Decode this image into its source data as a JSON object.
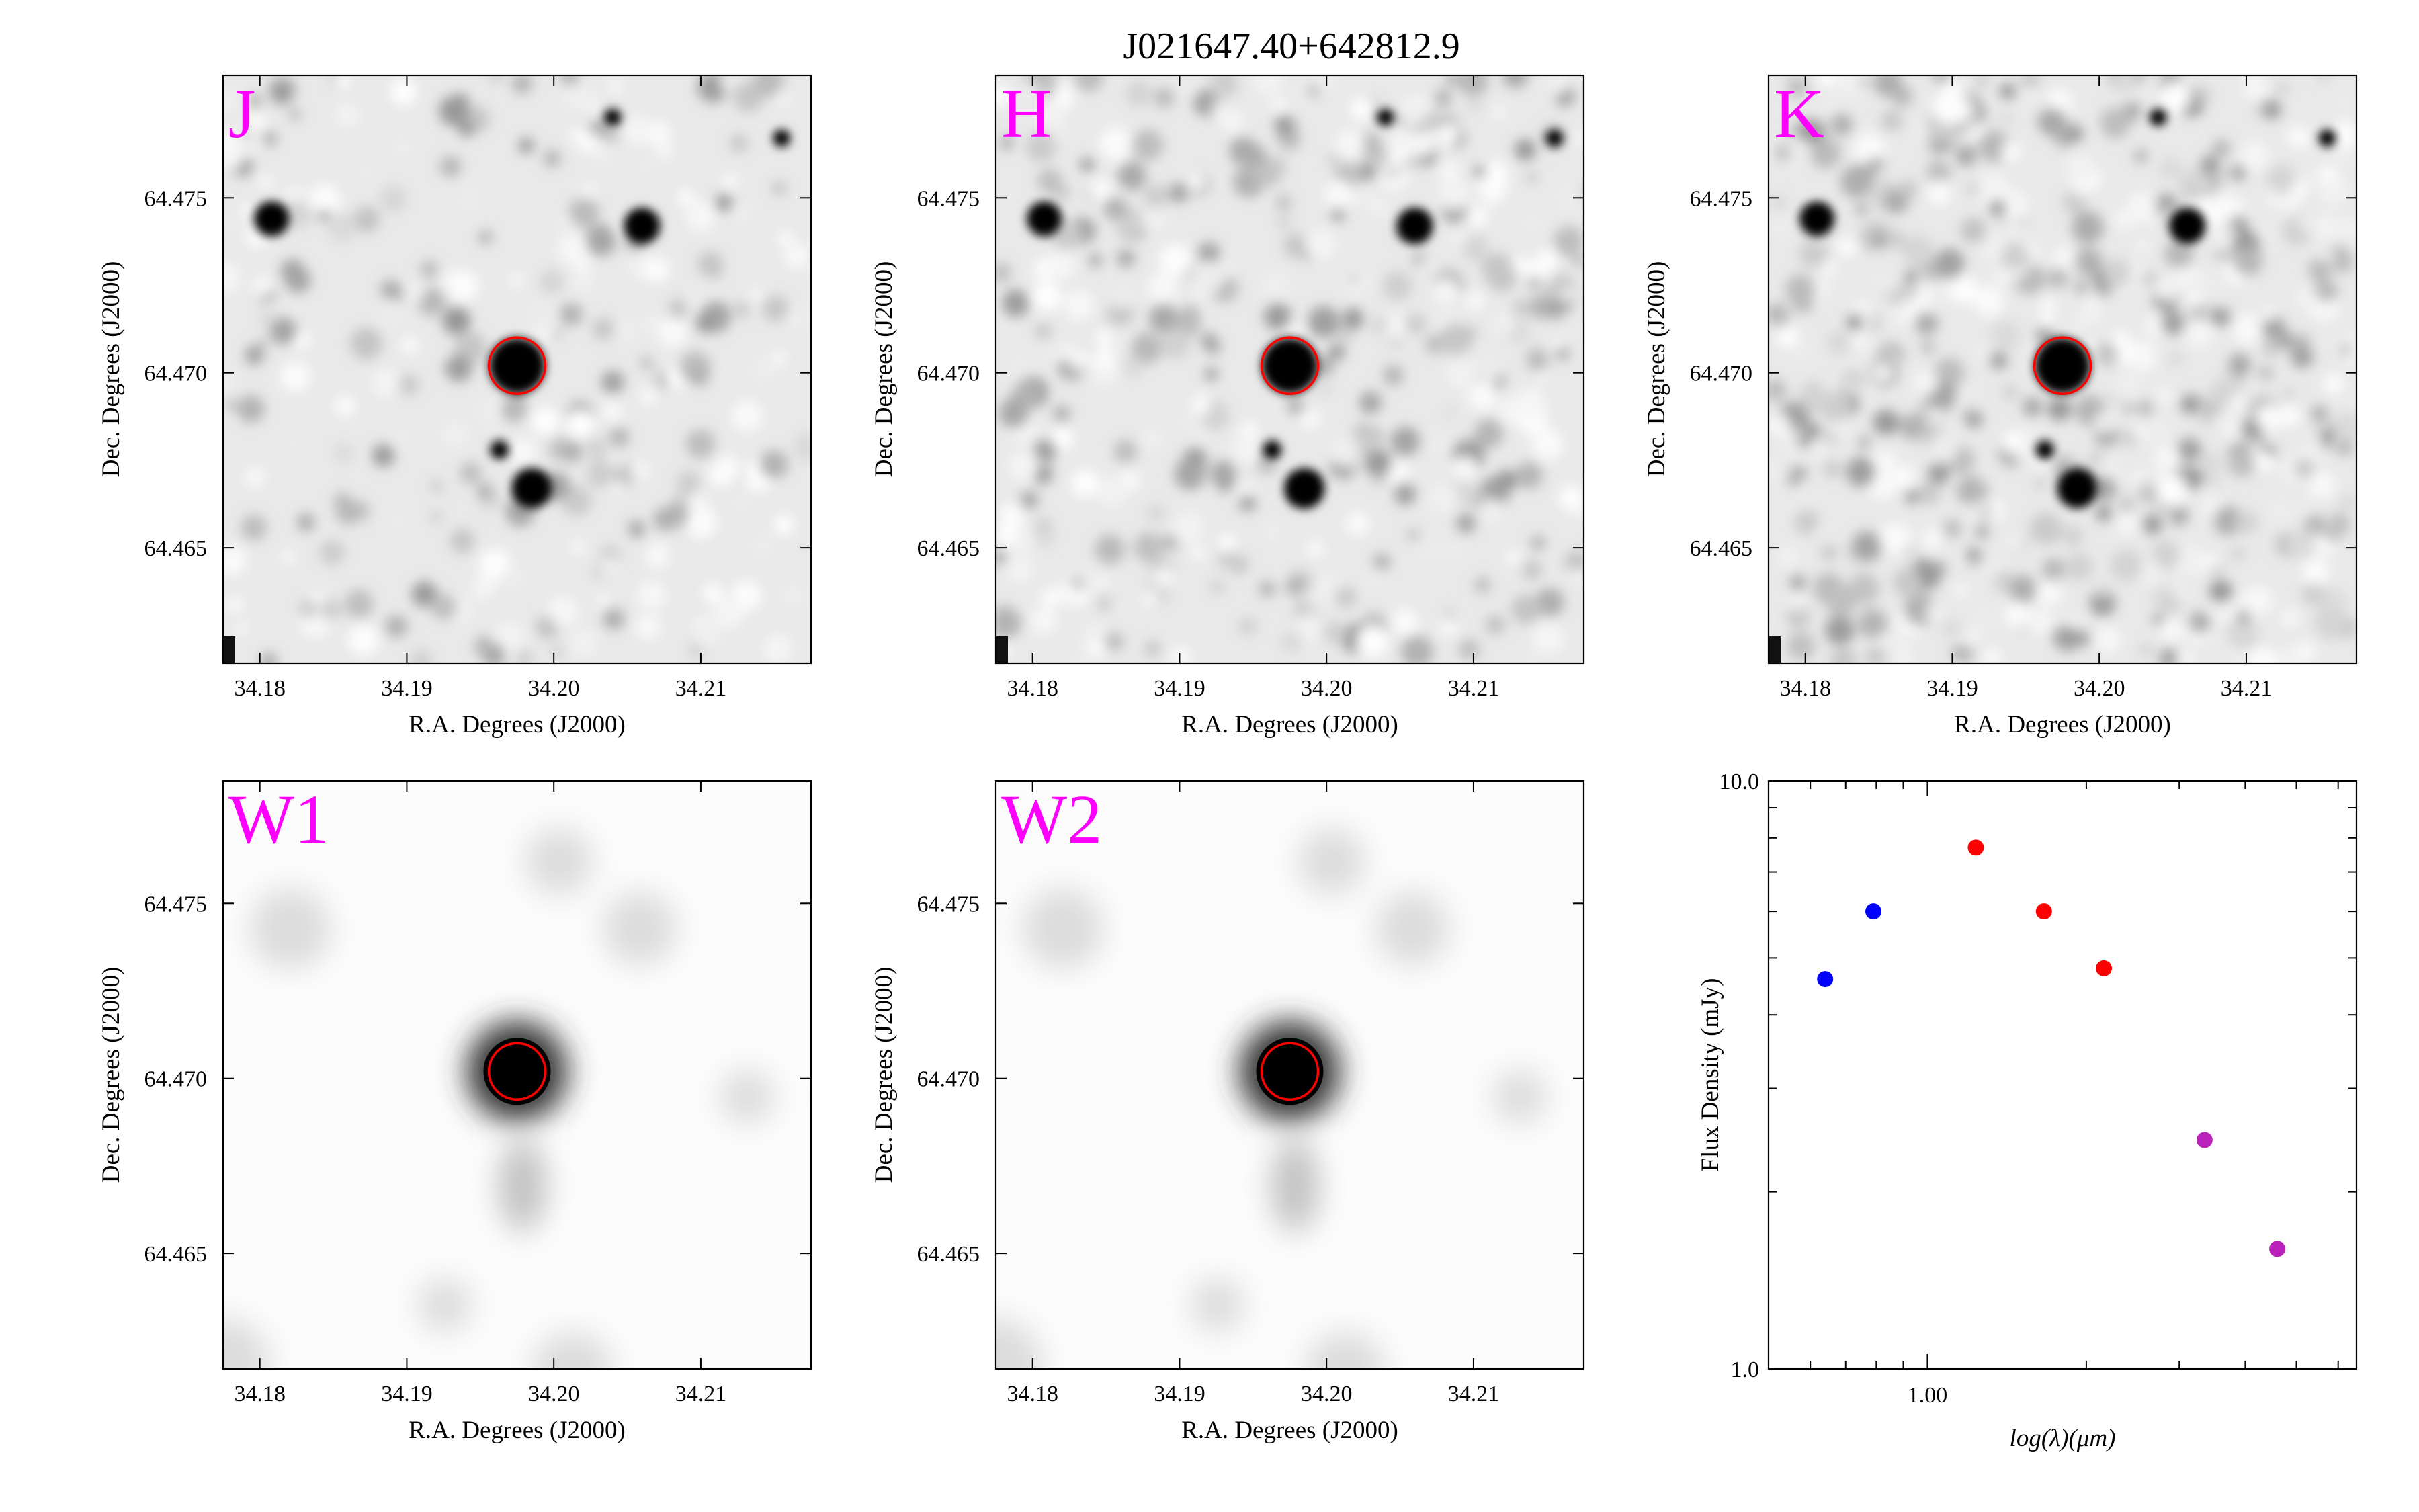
{
  "figure": {
    "title": "J021647.40+642812.9"
  },
  "image_panels": [
    {
      "band": "J",
      "xlabel": "R.A. Degrees (J2000)",
      "ylabel": "Dec. Degrees (J2000)",
      "x_ticks": [
        "34.18",
        "34.19",
        "34.20",
        "34.21"
      ],
      "y_ticks": [
        "64.475",
        "64.470",
        "64.465"
      ],
      "style": "2mass"
    },
    {
      "band": "H",
      "xlabel": "R.A. Degrees (J2000)",
      "ylabel": "Dec. Degrees (J2000)",
      "x_ticks": [
        "34.18",
        "34.19",
        "34.20",
        "34.21"
      ],
      "y_ticks": [
        "64.475",
        "64.470",
        "64.465"
      ],
      "style": "2mass"
    },
    {
      "band": "K",
      "xlabel": "R.A. Degrees (J2000)",
      "ylabel": "Dec. Degrees (J2000)",
      "x_ticks": [
        "34.18",
        "34.19",
        "34.20",
        "34.21"
      ],
      "y_ticks": [
        "64.475",
        "64.470",
        "64.465"
      ],
      "style": "2mass"
    },
    {
      "band": "W1",
      "xlabel": "R.A. Degrees (J2000)",
      "ylabel": "Dec. Degrees (J2000)",
      "x_ticks": [
        "34.18",
        "34.19",
        "34.20",
        "34.21"
      ],
      "y_ticks": [
        "64.475",
        "64.470",
        "64.465"
      ],
      "style": "wise"
    },
    {
      "band": "W2",
      "xlabel": "R.A. Degrees (J2000)",
      "ylabel": "Dec. Degrees (J2000)",
      "x_ticks": [
        "34.18",
        "34.19",
        "34.20",
        "34.21"
      ],
      "y_ticks": [
        "64.475",
        "64.470",
        "64.465"
      ],
      "style": "wise"
    }
  ],
  "chart_data": {
    "type": "scatter",
    "xlabel": "log(λ)(μm)",
    "ylabel": "Flux Density (mJy)",
    "x_scale": "log",
    "y_scale": "log",
    "xlim": [
      0.5,
      6.5
    ],
    "ylim": [
      1.0,
      10.0
    ],
    "x_tick_labels": [
      "1.00"
    ],
    "y_tick_labels": [
      "1.0",
      "10.0"
    ],
    "series": [
      {
        "color": "#0000ff",
        "x": [
          0.64,
          0.79
        ],
        "y": [
          4.6,
          6.0
        ]
      },
      {
        "color": "#ff0000",
        "x": [
          1.235,
          1.662,
          2.159
        ],
        "y": [
          7.7,
          6.0,
          4.8
        ]
      },
      {
        "color": "#bb22bb",
        "x": [
          3.35,
          4.6
        ],
        "y": [
          2.45,
          1.6
        ]
      }
    ],
    "source_marker": {
      "color": "#ff0000",
      "ra": 34.1975,
      "dec": 64.4702
    }
  }
}
